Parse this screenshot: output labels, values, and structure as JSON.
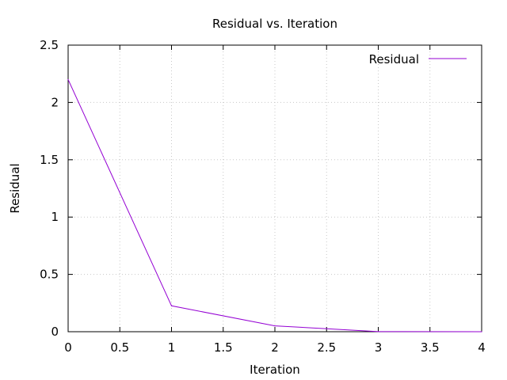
{
  "chart_data": {
    "type": "line",
    "title": "Residual vs. Iteration",
    "xlabel": "Iteration",
    "ylabel": "Residual",
    "xlim": [
      0,
      4
    ],
    "ylim": [
      0,
      2.5
    ],
    "x_ticks": [
      "0",
      "0.5",
      "1",
      "1.5",
      "2",
      "2.5",
      "3",
      "3.5",
      "4"
    ],
    "y_ticks": [
      "0",
      "0.5",
      "1",
      "1.5",
      "2",
      "2.5"
    ],
    "grid": true,
    "legend_position": "top-right",
    "series": [
      {
        "name": "Residual",
        "color": "#9400d3",
        "x": [
          0,
          1,
          2,
          3,
          4
        ],
        "y": [
          2.2,
          0.226,
          0.051,
          0.001,
          0.0
        ]
      }
    ]
  }
}
